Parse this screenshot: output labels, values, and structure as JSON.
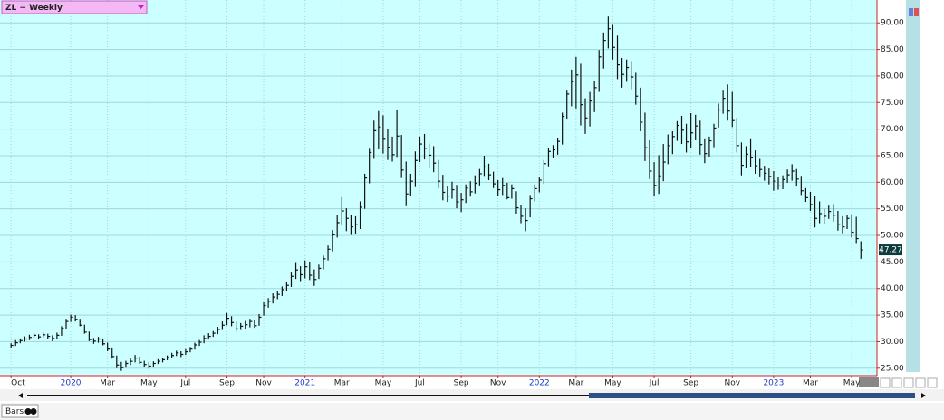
{
  "header": {
    "symbol": "ZL ~ Weekly"
  },
  "footer": {
    "tab": "Bars"
  },
  "chart_data": {
    "type": "hlc",
    "xlim": [
      -2.4,
      188.5
    ],
    "ylim": [
      23.6,
      94.3
    ],
    "yticks": [
      {
        "value": 25,
        "label": "25.00"
      },
      {
        "value": 30,
        "label": "30.00"
      },
      {
        "value": 35,
        "label": "35.00"
      },
      {
        "value": 40,
        "label": "40.00"
      },
      {
        "value": 45,
        "label": "45.00"
      },
      {
        "value": 50,
        "label": "50.00"
      },
      {
        "value": 55,
        "label": "55.00"
      },
      {
        "value": 60,
        "label": "60.00"
      },
      {
        "value": 65,
        "label": "65.00"
      },
      {
        "value": 70,
        "label": "70.00"
      },
      {
        "value": 75,
        "label": "75.00"
      },
      {
        "value": 80,
        "label": "80.00"
      },
      {
        "value": 85,
        "label": "85.00"
      },
      {
        "value": 90,
        "label": "90.00"
      }
    ],
    "xticks": [
      {
        "value": 0,
        "label": "Oct"
      },
      {
        "value": 13,
        "label": "2020"
      },
      {
        "value": 21,
        "label": "Mar"
      },
      {
        "value": 30,
        "label": "May"
      },
      {
        "value": 38,
        "label": "Jul"
      },
      {
        "value": 47,
        "label": "Sep"
      },
      {
        "value": 55,
        "label": "Nov"
      },
      {
        "value": 64,
        "label": "2021"
      },
      {
        "value": 72,
        "label": "Mar"
      },
      {
        "value": 81,
        "label": "May"
      },
      {
        "value": 89,
        "label": "Jul"
      },
      {
        "value": 98,
        "label": "Sep"
      },
      {
        "value": 106,
        "label": "Nov"
      },
      {
        "value": 115,
        "label": "2022"
      },
      {
        "value": 123,
        "label": "Mar"
      },
      {
        "value": 131,
        "label": "May"
      },
      {
        "value": 140,
        "label": "Jul"
      },
      {
        "value": 148,
        "label": "Sep"
      },
      {
        "value": 157,
        "label": "Nov"
      },
      {
        "value": 166,
        "label": "2023"
      },
      {
        "value": 174,
        "label": "Mar"
      },
      {
        "value": 183,
        "label": "May"
      }
    ],
    "grid": true,
    "color": "#111111",
    "high": [
      29.7,
      30.3,
      30.6,
      31.0,
      31.3,
      31.6,
      31.4,
      31.7,
      31.5,
      31.2,
      31.7,
      32.9,
      34.3,
      35.1,
      35.0,
      34.3,
      33.2,
      31.9,
      30.7,
      30.9,
      30.6,
      29.8,
      28.9,
      27.4,
      26.2,
      26.4,
      26.9,
      27.5,
      27.2,
      26.4,
      26.1,
      26.3,
      26.7,
      27.0,
      27.4,
      27.9,
      28.3,
      28.2,
      28.6,
      29.0,
      29.8,
      30.3,
      31.2,
      31.6,
      32.0,
      32.8,
      33.8,
      35.4,
      34.8,
      33.8,
      33.5,
      33.9,
      34.3,
      34.1,
      35.2,
      37.4,
      38.2,
      39.1,
      39.6,
      40.4,
      41.2,
      43.0,
      44.8,
      44.2,
      45.3,
      45.0,
      43.6,
      44.5,
      46.2,
      48.1,
      51.0,
      53.8,
      57.2,
      55.1,
      53.9,
      53.6,
      56.4,
      61.6,
      66.3,
      71.6,
      73.4,
      72.6,
      70.1,
      68.6,
      73.6,
      68.9,
      63.9,
      61.6,
      65.8,
      68.6,
      69.1,
      67.3,
      66.8,
      64.2,
      61.4,
      59.3,
      60.1,
      59.5,
      58.0,
      59.6,
      60.2,
      61.3,
      62.5,
      65.0,
      63.5,
      62.0,
      60.4,
      60.8,
      59.9,
      59.6,
      58.3,
      55.8,
      55.1,
      57.6,
      59.6,
      60.9,
      64.2,
      66.5,
      67.0,
      68.4,
      73.1,
      77.4,
      81.2,
      83.6,
      82.3,
      75.8,
      77.0,
      79.0,
      84.9,
      88.2,
      91.2,
      89.6,
      87.6,
      83.4,
      83.1,
      82.8,
      80.6,
      77.8,
      73.1,
      67.9,
      63.8,
      65.1,
      67.2,
      69.0,
      69.6,
      71.5,
      72.5,
      71.0,
      73.0,
      72.7,
      71.6,
      68.1,
      68.6,
      71.0,
      74.8,
      77.4,
      78.4,
      77.0,
      72.1,
      67.5,
      66.8,
      68.1,
      66.0,
      64.4,
      63.1,
      62.6,
      62.1,
      61.0,
      61.3,
      62.4,
      63.4,
      62.5,
      61.2,
      58.9,
      58.2,
      57.5,
      56.4,
      55.0,
      55.6,
      55.9,
      54.6,
      53.6,
      53.8,
      54.0,
      53.5,
      48.9
    ],
    "low": [
      28.8,
      29.2,
      29.7,
      30.0,
      30.3,
      30.7,
      30.4,
      30.8,
      30.5,
      30.1,
      30.5,
      31.1,
      32.4,
      33.7,
      33.8,
      32.9,
      31.5,
      30.1,
      29.6,
      29.8,
      29.3,
      28.2,
      26.8,
      25.0,
      24.5,
      25.1,
      25.6,
      26.1,
      25.8,
      25.3,
      24.9,
      25.3,
      25.8,
      26.1,
      26.5,
      26.9,
      27.3,
      27.1,
      27.5,
      28.0,
      28.5,
      29.2,
      29.7,
      30.4,
      30.9,
      31.4,
      32.2,
      33.1,
      32.9,
      31.9,
      32.2,
      32.4,
      32.7,
      32.6,
      33.0,
      34.9,
      36.4,
      37.2,
      38.0,
      38.6,
      39.5,
      40.3,
      41.8,
      41.4,
      41.9,
      41.6,
      40.5,
      41.8,
      43.6,
      45.3,
      47.0,
      49.6,
      51.9,
      50.8,
      50.1,
      50.3,
      51.2,
      55.0,
      59.8,
      64.4,
      66.2,
      65.4,
      64.2,
      63.9,
      64.6,
      60.8,
      55.5,
      57.4,
      59.1,
      63.8,
      64.3,
      62.6,
      61.9,
      58.9,
      56.6,
      56.3,
      56.9,
      55.1,
      54.4,
      56.1,
      57.3,
      57.9,
      59.4,
      61.2,
      60.4,
      58.9,
      57.5,
      57.6,
      56.8,
      56.9,
      54.1,
      52.3,
      50.8,
      53.4,
      56.4,
      58.1,
      59.7,
      63.0,
      64.5,
      65.2,
      67.1,
      71.8,
      74.3,
      73.9,
      70.7,
      69.1,
      70.5,
      73.2,
      77.0,
      81.4,
      85.2,
      83.1,
      79.4,
      77.8,
      78.9,
      77.5,
      74.6,
      69.6,
      64.0,
      60.6,
      57.3,
      57.8,
      60.2,
      63.4,
      65.3,
      67.8,
      67.2,
      65.6,
      66.4,
      67.9,
      65.2,
      63.6,
      64.8,
      66.6,
      70.3,
      72.9,
      71.6,
      70.4,
      65.6,
      61.3,
      62.6,
      62.9,
      61.6,
      61.1,
      60.3,
      59.6,
      58.4,
      58.6,
      58.7,
      59.9,
      60.3,
      59.2,
      57.6,
      56.3,
      54.6,
      51.5,
      52.3,
      52.1,
      53.1,
      52.6,
      50.9,
      50.4,
      51.2,
      49.6,
      48.4,
      45.6
    ],
    "close": [
      29.3,
      29.8,
      30.2,
      30.5,
      30.8,
      31.2,
      30.9,
      31.3,
      31.0,
      30.6,
      31.2,
      32.5,
      33.8,
      34.6,
      34.2,
      33.1,
      31.8,
      30.4,
      30.1,
      30.5,
      29.6,
      28.6,
      27.2,
      25.6,
      25.1,
      25.9,
      26.3,
      26.9,
      26.1,
      25.7,
      25.4,
      25.9,
      26.3,
      26.6,
      27.0,
      27.4,
      27.9,
      27.6,
      28.1,
      28.6,
      29.4,
      29.9,
      30.6,
      31.0,
      31.6,
      32.3,
      33.1,
      34.4,
      33.6,
      32.4,
      32.9,
      33.2,
      33.8,
      33.0,
      34.6,
      36.8,
      37.6,
      38.4,
      38.9,
      39.8,
      40.6,
      42.3,
      43.5,
      42.6,
      44.1,
      42.5,
      41.7,
      43.8,
      45.6,
      47.4,
      50.1,
      52.4,
      54.6,
      53.2,
      51.6,
      52.1,
      55.3,
      60.8,
      65.6,
      69.7,
      70.4,
      68.1,
      66.6,
      65.2,
      68.7,
      62.3,
      57.8,
      60.2,
      64.1,
      67.2,
      66.4,
      65.1,
      63.6,
      60.2,
      58.1,
      57.4,
      58.6,
      56.3,
      56.7,
      58.9,
      58.2,
      59.8,
      61.6,
      62.9,
      61.4,
      59.7,
      58.6,
      59.4,
      57.1,
      58.8,
      55.2,
      53.6,
      52.8,
      56.9,
      58.8,
      60.4,
      63.5,
      65.8,
      66.1,
      67.7,
      72.4,
      76.6,
      78.9,
      80.2,
      74.6,
      72.1,
      75.3,
      77.8,
      83.6,
      86.7,
      88.9,
      85.4,
      82.1,
      80.3,
      81.6,
      79.8,
      76.2,
      71.3,
      66.5,
      62.1,
      59.4,
      61.2,
      63.8,
      66.9,
      68.6,
      70.7,
      69.8,
      67.6,
      69.3,
      70.6,
      67.1,
      65.4,
      67.8,
      70.2,
      73.6,
      75.8,
      73.4,
      71.6,
      66.9,
      63.2,
      65.3,
      64.6,
      63.1,
      62.4,
      61.7,
      61.1,
      60.2,
      59.3,
      60.5,
      61.4,
      62.1,
      60.6,
      58.4,
      57.1,
      55.8,
      53.2,
      54.1,
      53.6,
      54.5,
      53.8,
      52.1,
      51.6,
      53.2,
      50.6,
      49.4,
      47.27
    ]
  }
}
